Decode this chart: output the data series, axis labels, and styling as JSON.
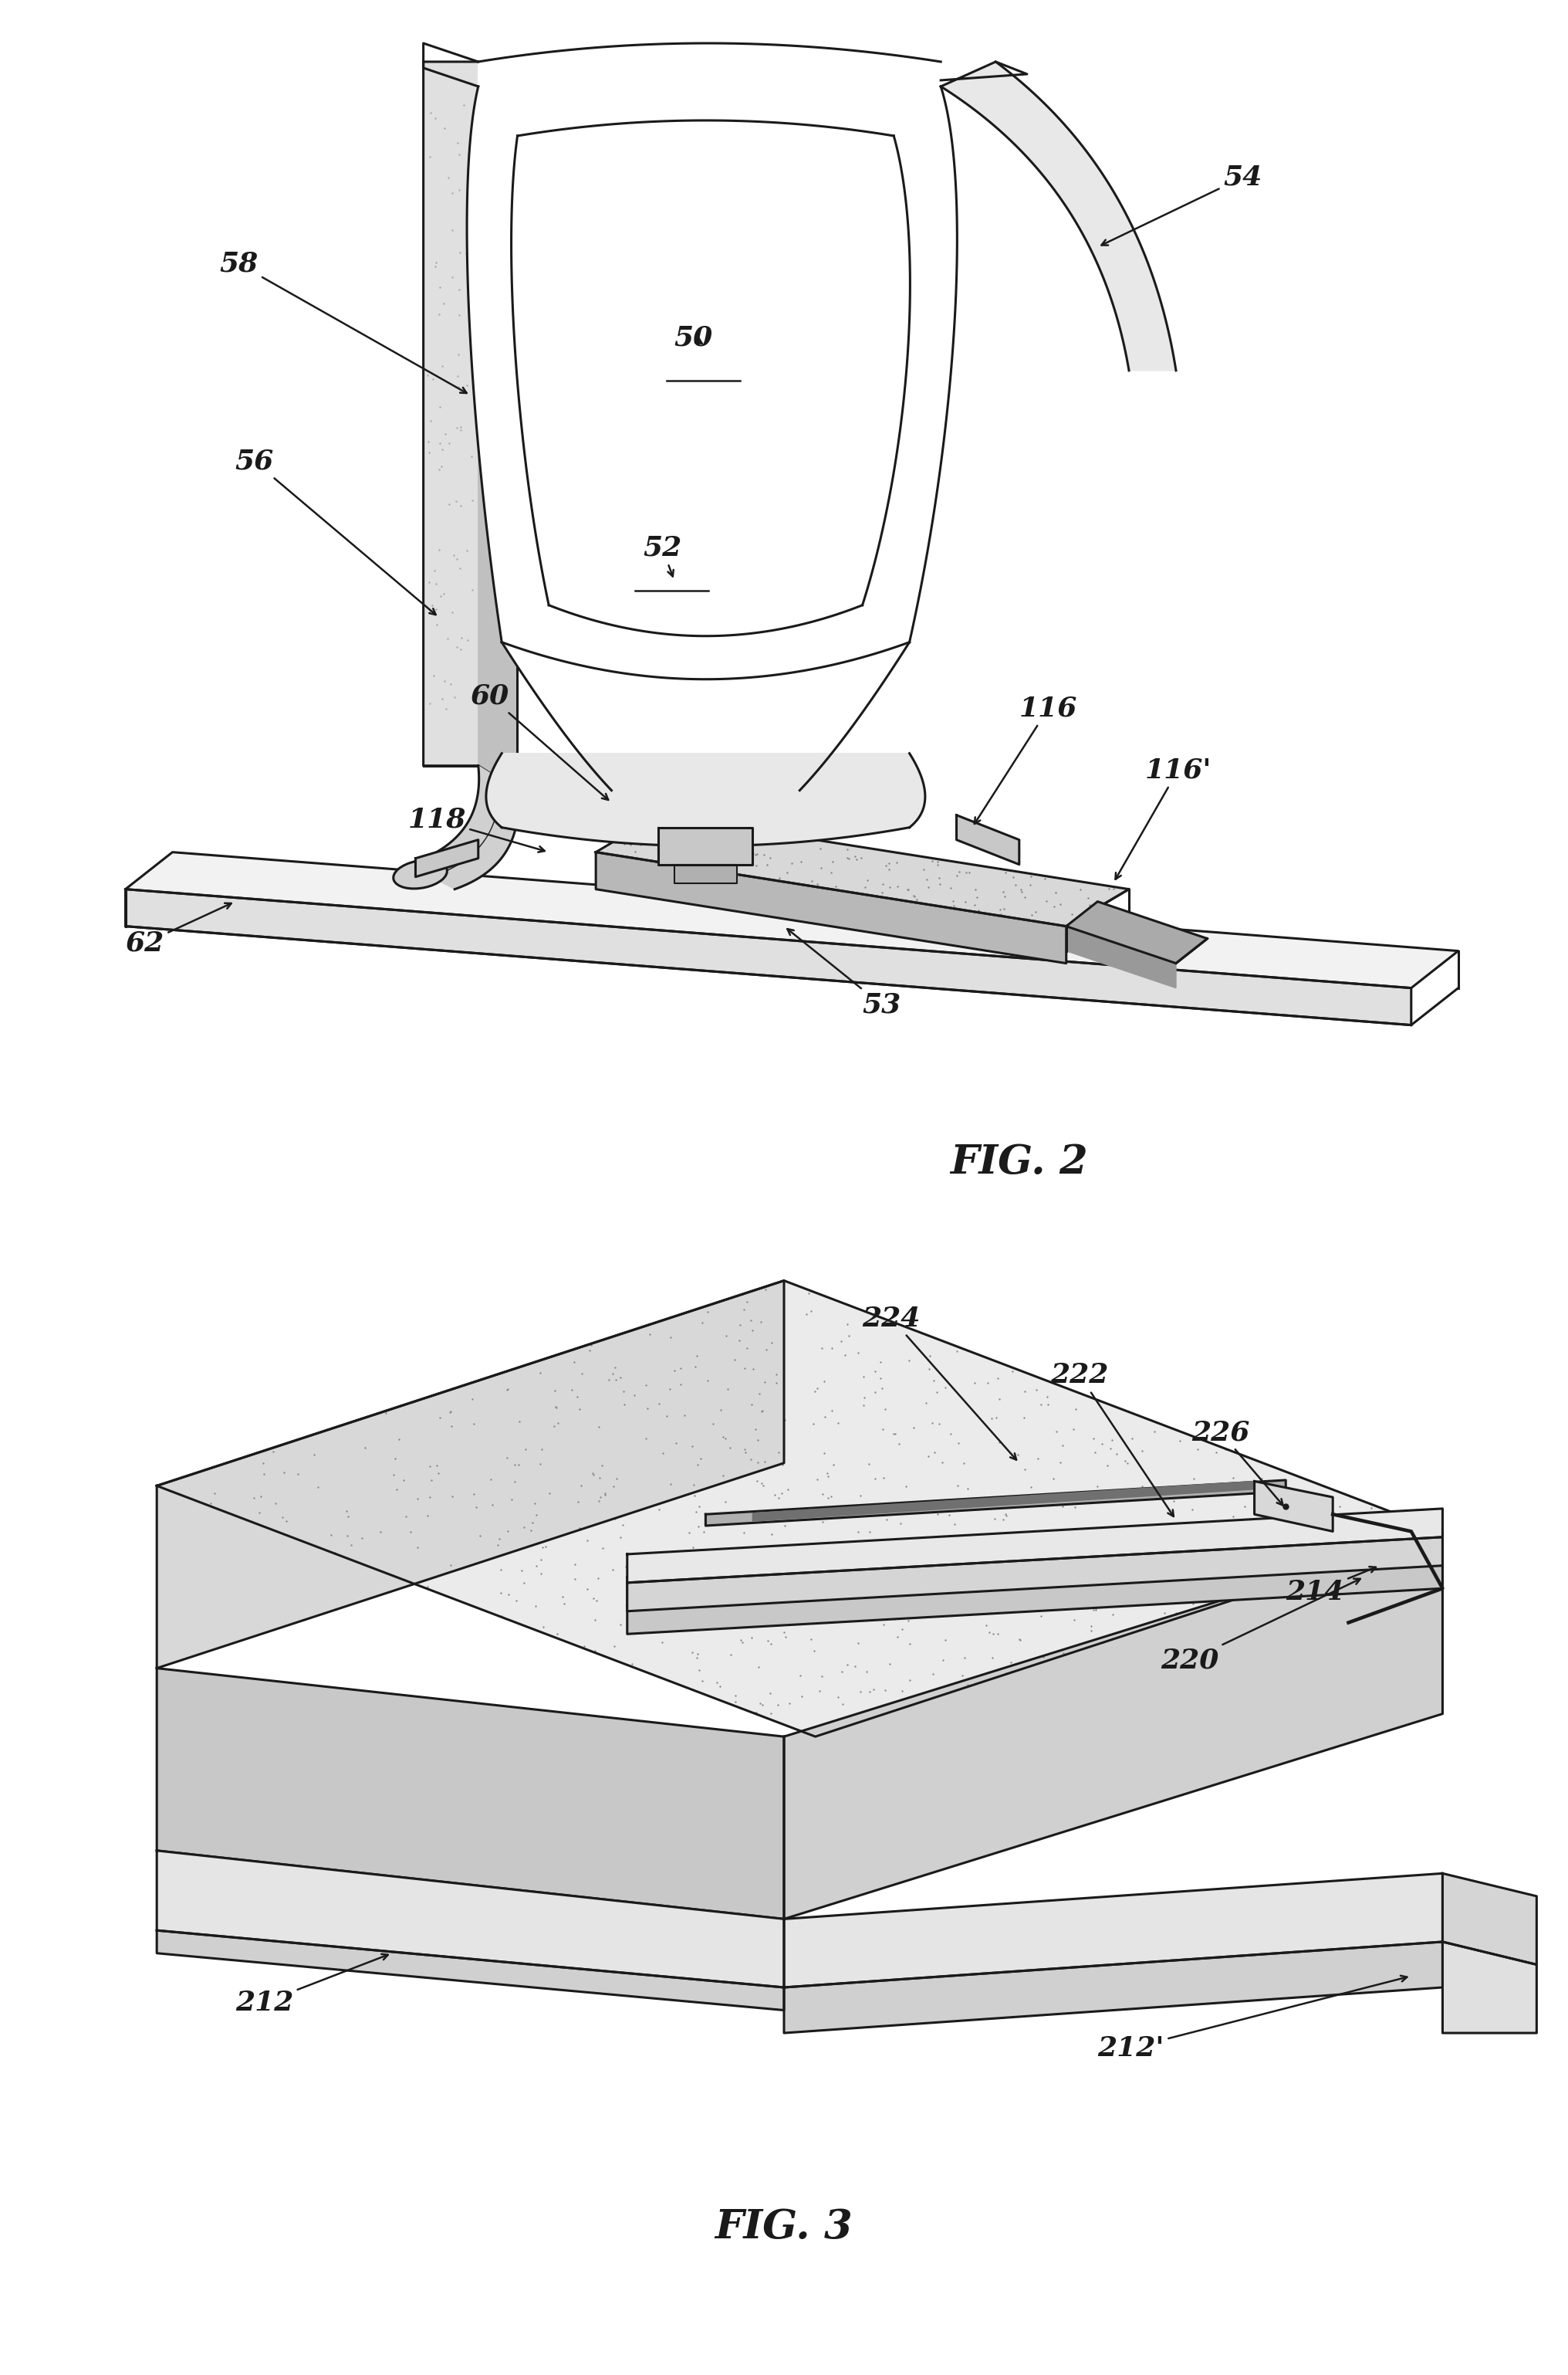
{
  "bg_color": "#ffffff",
  "lc": "#1a1a1a",
  "fig2_title": "FIG. 2",
  "fig3_title": "FIG. 3"
}
